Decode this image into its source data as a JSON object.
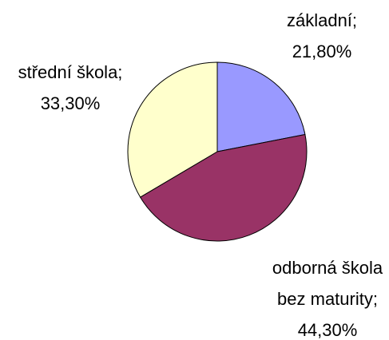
{
  "chart_data": {
    "type": "pie",
    "categories": [
      "základní;",
      "odborná škola bez maturity;",
      "střední škola;"
    ],
    "values": [
      21.8,
      44.3,
      33.3
    ],
    "value_labels": [
      "21,80%",
      "44,30%",
      "33,30%"
    ],
    "colors": [
      "#9999ff",
      "#993366",
      "#ffffcc"
    ]
  }
}
